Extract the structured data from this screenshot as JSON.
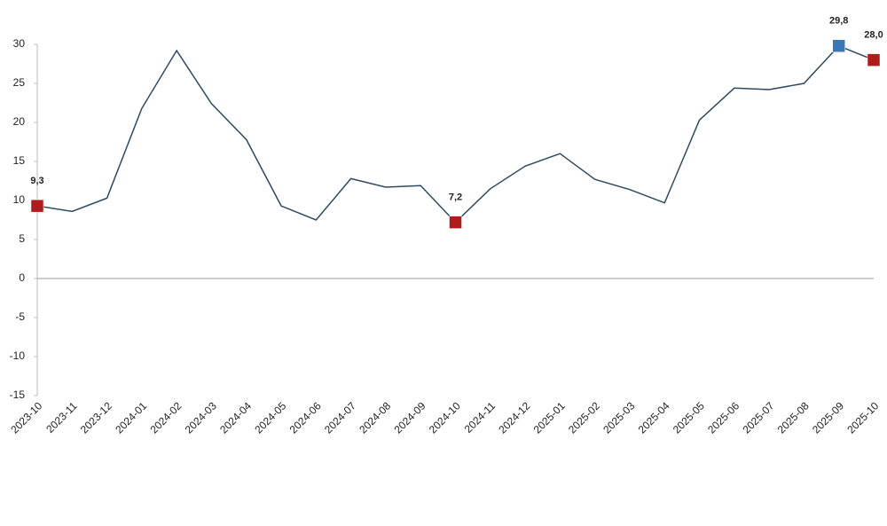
{
  "chart_data": {
    "type": "line",
    "categories": [
      "2023-10",
      "2023-11",
      "2023-12",
      "2024-01",
      "2024-02",
      "2024-03",
      "2024-04",
      "2024-05",
      "2024-06",
      "2024-07",
      "2024-08",
      "2024-09",
      "2024-10",
      "2024-11",
      "2024-12",
      "2025-01",
      "2025-02",
      "2025-03",
      "2025-04",
      "2025-05",
      "2025-06",
      "2025-07",
      "2025-08",
      "2025-09",
      "2025-10"
    ],
    "values": [
      9.3,
      8.6,
      10.3,
      21.8,
      29.2,
      22.4,
      17.8,
      9.3,
      7.5,
      12.8,
      11.7,
      11.9,
      7.2,
      11.5,
      14.4,
      16.0,
      12.7,
      11.4,
      9.7,
      20.3,
      24.4,
      24.2,
      25.0,
      29.8,
      28.0
    ],
    "value_labels": [
      "9,3",
      null,
      null,
      null,
      null,
      null,
      null,
      null,
      null,
      null,
      null,
      null,
      "7,2",
      null,
      null,
      null,
      null,
      null,
      null,
      null,
      null,
      null,
      null,
      "29,8",
      "28,0"
    ],
    "marker_colors": [
      "#b01c1c",
      null,
      null,
      null,
      null,
      null,
      null,
      null,
      null,
      null,
      null,
      null,
      "#b01c1c",
      null,
      null,
      null,
      null,
      null,
      null,
      null,
      null,
      null,
      null,
      "#3a78b5",
      "#b01c1c"
    ],
    "color": "#2e4a62",
    "ylim": [
      -15,
      30
    ],
    "yticks": [
      -15,
      -10,
      -5,
      0,
      5,
      10,
      15,
      20,
      25,
      30
    ]
  }
}
